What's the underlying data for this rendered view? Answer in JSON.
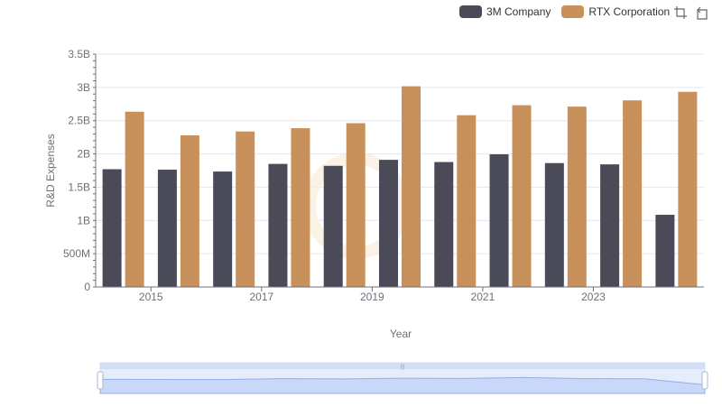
{
  "chart_data": {
    "type": "bar",
    "categories": [
      "2014",
      "2015",
      "2016",
      "2017",
      "2018",
      "2019",
      "2020",
      "2021",
      "2022",
      "2023",
      "2024"
    ],
    "x_tick_labels": [
      "2015",
      "2017",
      "2019",
      "2021",
      "2023"
    ],
    "y_tick_labels": [
      "0",
      "500M",
      "1B",
      "1.5B",
      "2B",
      "2.5B",
      "3B",
      "3.5B"
    ],
    "series": [
      {
        "name": "3M Company",
        "color": "#4a4a58",
        "values": [
          1770000000,
          1763000000,
          1735000000,
          1850000000,
          1821000000,
          1911000000,
          1878000000,
          1994000000,
          1862000000,
          1843000000,
          1085000000
        ]
      },
      {
        "name": "RTX Corporation",
        "color": "#c8915c",
        "values": [
          2635000000,
          2279000000,
          2337000000,
          2387000000,
          2462000000,
          3017000000,
          2582000000,
          2732000000,
          2711000000,
          2805000000,
          2934000000
        ]
      }
    ],
    "xlabel": "Year",
    "ylabel": "R&D Expenses",
    "ylim": [
      0,
      3500000000
    ],
    "grid": "horizontal",
    "legend_position": "top-right"
  },
  "icons": {
    "zoom": "zoom-icon",
    "restore": "restore-icon"
  },
  "slider_label": "|||"
}
